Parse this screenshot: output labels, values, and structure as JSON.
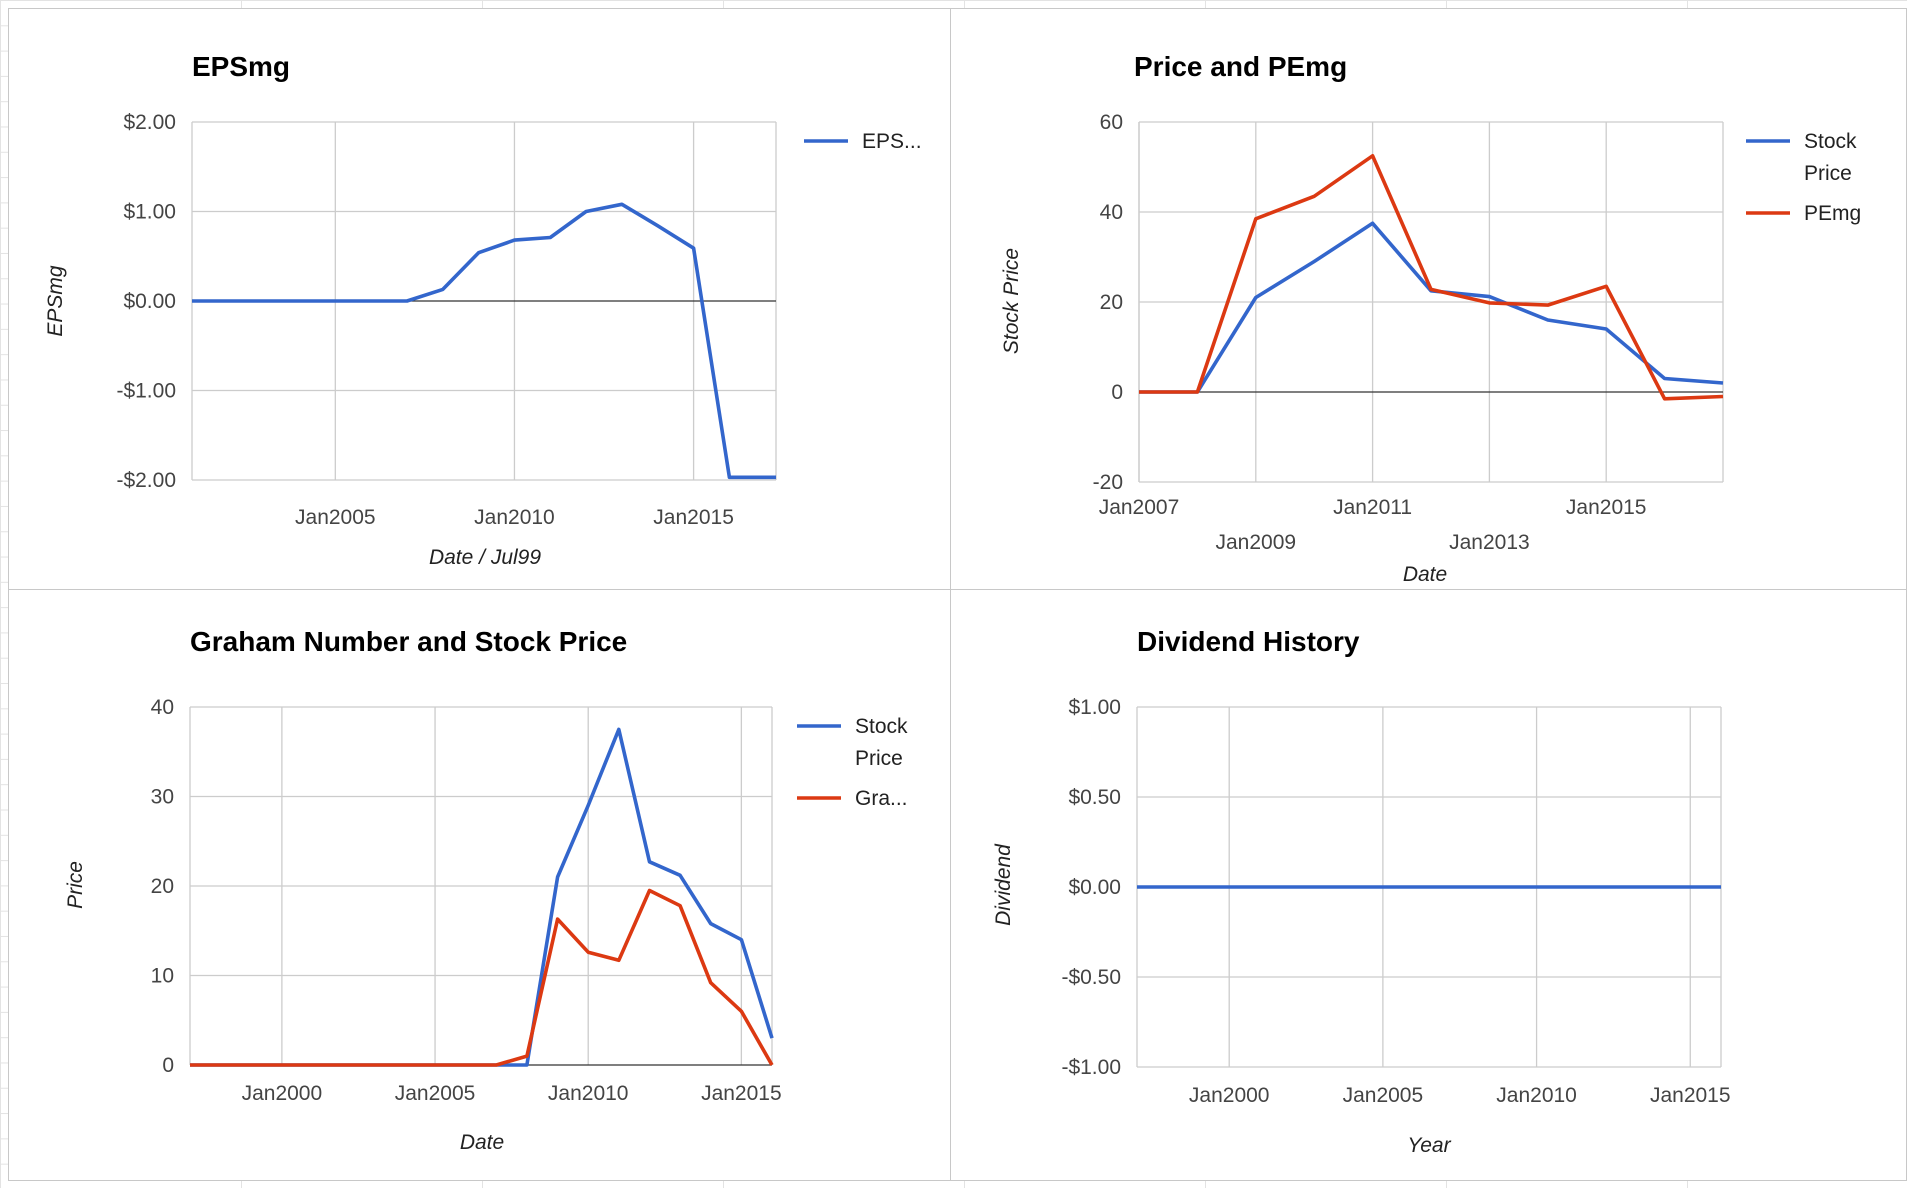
{
  "colors": {
    "blue": "#3366cc",
    "red": "#dc3912",
    "grid": "#cccccc",
    "baseline": "#333333"
  },
  "charts": [
    {
      "id": "epsmg",
      "title": "EPSmg",
      "xlabel": "Date / Jul99",
      "ylabel": "EPSmg",
      "xlim": [
        2001,
        2017.3
      ],
      "ylim": [
        -2,
        2
      ],
      "yticks": [
        {
          "v": 2,
          "label": "$2.00"
        },
        {
          "v": 1,
          "label": "$1.00"
        },
        {
          "v": 0,
          "label": "$0.00"
        },
        {
          "v": -1,
          "label": "-$1.00"
        },
        {
          "v": -2,
          "label": "-$2.00"
        }
      ],
      "xticks": [
        {
          "v": 2005,
          "label": "Jan2005"
        },
        {
          "v": 2010,
          "label": "Jan2010"
        },
        {
          "v": 2015,
          "label": "Jan2015"
        }
      ],
      "series": [
        {
          "name": "EPS...",
          "color": "#3366cc",
          "x": [
            2001,
            2002,
            2003,
            2004,
            2005,
            2006,
            2007,
            2008,
            2009,
            2010,
            2011,
            2012,
            2013,
            2014,
            2015,
            2016,
            2017.3
          ],
          "y": [
            0,
            0,
            0,
            0,
            0,
            0,
            0,
            0.13,
            0.54,
            0.68,
            0.71,
            1.0,
            1.08,
            0.84,
            0.59,
            -1.97,
            -1.97
          ]
        }
      ]
    },
    {
      "id": "price-pemg",
      "title": "Price and PEmg",
      "xlabel": "Date",
      "ylabel": "Stock Price",
      "xlim": [
        2007,
        2017
      ],
      "ylim": [
        -20,
        60
      ],
      "yticks": [
        {
          "v": 60,
          "label": "60"
        },
        {
          "v": 40,
          "label": "40"
        },
        {
          "v": 20,
          "label": "20"
        },
        {
          "v": 0,
          "label": "0"
        },
        {
          "v": -20,
          "label": "-20"
        }
      ],
      "xticks": [
        {
          "v": 2007,
          "label": "Jan2007",
          "row": 0
        },
        {
          "v": 2009,
          "label": "Jan2009",
          "row": 1
        },
        {
          "v": 2011,
          "label": "Jan2011",
          "row": 0
        },
        {
          "v": 2013,
          "label": "Jan2013",
          "row": 1
        },
        {
          "v": 2015,
          "label": "Jan2015",
          "row": 0
        }
      ],
      "series": [
        {
          "name": "Stock Price",
          "color": "#3366cc",
          "x": [
            2007,
            2008,
            2009,
            2010,
            2011,
            2012,
            2013,
            2014,
            2015,
            2016,
            2017
          ],
          "y": [
            0,
            0,
            21,
            29,
            37.5,
            22.5,
            21.2,
            16,
            14,
            3,
            2
          ]
        },
        {
          "name": "PEmg",
          "color": "#dc3912",
          "x": [
            2007,
            2008,
            2009,
            2010,
            2011,
            2012,
            2013,
            2014,
            2015,
            2016,
            2017
          ],
          "y": [
            0,
            0,
            38.5,
            43.5,
            52.5,
            22.8,
            19.8,
            19.3,
            23.5,
            -1.5,
            -1
          ]
        }
      ]
    },
    {
      "id": "graham",
      "title": "Graham Number and Stock Price",
      "xlabel": "Date",
      "ylabel": "Price",
      "xlim": [
        1997,
        2016
      ],
      "ylim": [
        0,
        40
      ],
      "yticks": [
        {
          "v": 40,
          "label": "40"
        },
        {
          "v": 30,
          "label": "30"
        },
        {
          "v": 20,
          "label": "20"
        },
        {
          "v": 10,
          "label": "10"
        },
        {
          "v": 0,
          "label": "0"
        }
      ],
      "xticks": [
        {
          "v": 2000,
          "label": "Jan2000"
        },
        {
          "v": 2005,
          "label": "Jan2005"
        },
        {
          "v": 2010,
          "label": "Jan2010"
        },
        {
          "v": 2015,
          "label": "Jan2015"
        }
      ],
      "series": [
        {
          "name": "Stock Price",
          "color": "#3366cc",
          "x": [
            1997,
            2008,
            2009,
            2010,
            2011,
            2012,
            2013,
            2014,
            2015,
            2016
          ],
          "y": [
            0,
            0,
            21,
            29,
            37.5,
            22.7,
            21.2,
            15.8,
            14,
            3
          ]
        },
        {
          "name": "Gra...",
          "color": "#dc3912",
          "x": [
            1997,
            2007,
            2008,
            2009,
            2010,
            2011,
            2012,
            2013,
            2014,
            2015,
            2016
          ],
          "y": [
            0,
            0,
            1,
            16.3,
            12.6,
            11.7,
            19.5,
            17.8,
            9.2,
            6,
            0
          ]
        }
      ]
    },
    {
      "id": "dividend",
      "title": "Dividend History",
      "xlabel": "Year",
      "ylabel": "Dividend",
      "xlim": [
        1997,
        2016
      ],
      "ylim": [
        -1,
        1
      ],
      "yticks": [
        {
          "v": 1,
          "label": "$1.00"
        },
        {
          "v": 0.5,
          "label": "$0.50"
        },
        {
          "v": 0,
          "label": "$0.00"
        },
        {
          "v": -0.5,
          "label": "-$0.50"
        },
        {
          "v": -1,
          "label": "-$1.00"
        }
      ],
      "xticks": [
        {
          "v": 2000,
          "label": "Jan2000"
        },
        {
          "v": 2005,
          "label": "Jan2005"
        },
        {
          "v": 2010,
          "label": "Jan2010"
        },
        {
          "v": 2015,
          "label": "Jan2015"
        }
      ],
      "series": [
        {
          "name": "",
          "color": "#3366cc",
          "x": [
            1997,
            2016
          ],
          "y": [
            0,
            0
          ]
        }
      ]
    }
  ]
}
